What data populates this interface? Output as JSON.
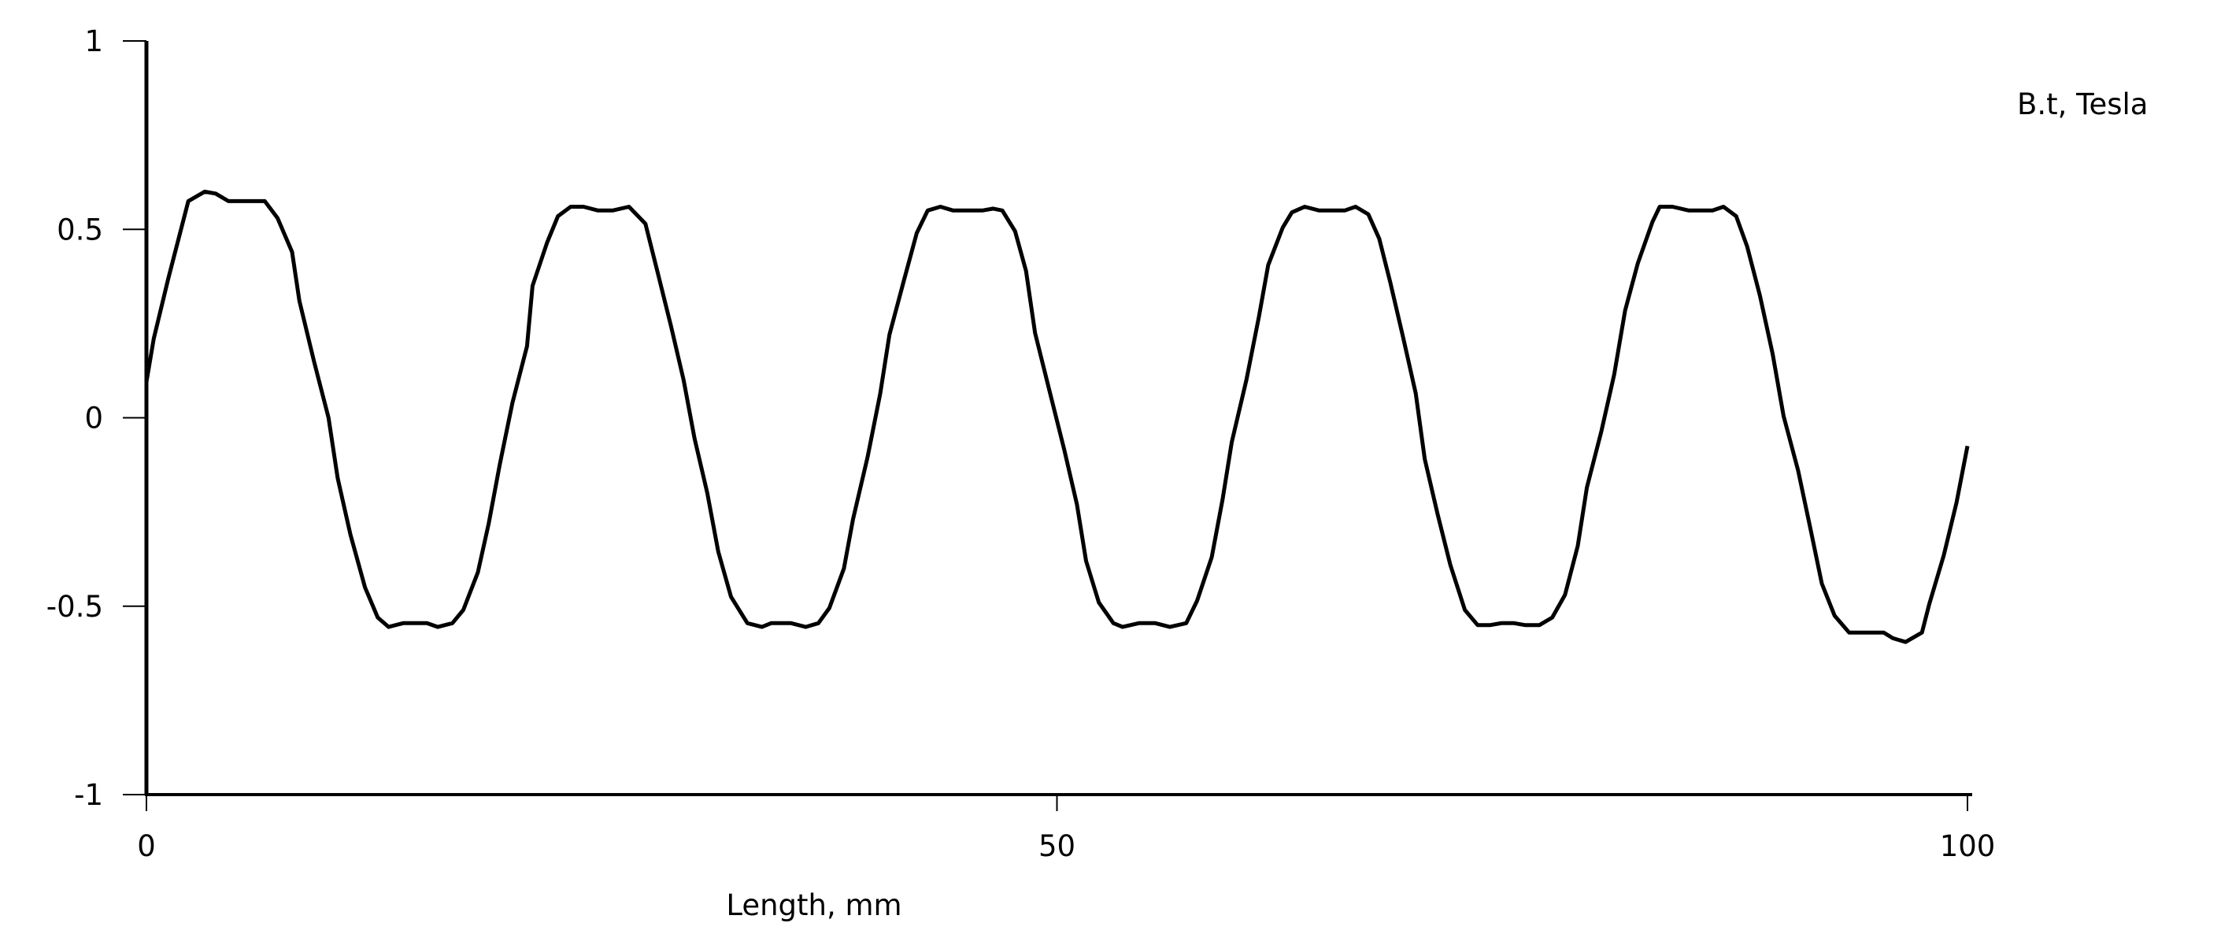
{
  "chart_data": {
    "type": "line",
    "title": "",
    "xlabel": "Length, mm",
    "ylabel": "B.t, Tesla",
    "xlim": [
      0,
      100
    ],
    "ylim": [
      -1,
      1
    ],
    "xticks": [
      0,
      50,
      100
    ],
    "xtick_labels": [
      "0",
      "50",
      "100"
    ],
    "yticks": [
      1,
      0.5,
      0,
      -0.5,
      -1
    ],
    "ytick_labels": [
      "1",
      "0.5",
      "0",
      "-0.5",
      "-1"
    ],
    "grid": false,
    "line_color": "#000000",
    "series": [
      {
        "x": [
          0,
          0.4,
          1.2,
          2.3,
          3.2,
          3.8,
          4.5,
          6.5,
          7.2,
          8.0,
          8.4,
          9.2,
          10.0,
          10.5,
          11.2,
          12.0,
          12.7,
          13.3,
          14.1,
          15.4,
          16.0,
          16.8,
          17.4,
          18.2,
          18.8,
          19.4,
          20.1,
          20.9,
          21.2,
          22.0,
          22.6,
          23.3,
          24.0,
          24.8,
          25.6,
          26.5,
          27.4,
          28.1,
          28.8,
          29.5,
          30.1,
          30.8,
          31.4,
          32.1,
          33.0,
          33.8,
          34.3,
          35.4,
          36.2,
          36.9,
          37.5,
          38.3,
          38.8,
          39.6,
          40.3,
          40.8,
          41.6,
          42.3,
          42.9,
          43.6,
          44.3,
          45.9,
          46.5,
          47.0,
          47.7,
          48.3,
          48.8,
          49.6,
          50.4,
          51.1,
          51.6,
          52.3,
          53.1,
          53.6,
          54.5,
          55.4,
          56.2,
          57.1,
          57.7,
          58.5,
          59.1,
          59.6,
          60.4,
          61.1,
          61.6,
          62.4,
          62.9,
          63.6,
          64.4,
          65.8,
          66.4,
          67.1,
          67.7,
          68.3,
          69.0,
          69.7,
          70.2,
          70.9,
          71.6,
          72.4,
          73.1,
          73.8,
          74.4,
          75.1,
          75.7,
          76.5,
          77.2,
          77.9,
          78.6,
          79.1,
          79.9,
          80.6,
          81.2,
          81.9,
          82.7,
          83.1,
          83.8,
          84.7,
          86.0,
          86.6,
          87.3,
          87.9,
          88.6,
          89.3,
          89.9,
          90.7,
          91.4,
          92.0,
          92.7,
          93.5,
          95.4,
          95.9,
          96.6,
          97.5,
          97.9,
          98.7,
          99.4,
          100.0
        ],
        "y": [
          0.095,
          0.21,
          0.37,
          0.575,
          0.6,
          0.595,
          0.575,
          0.575,
          0.53,
          0.44,
          0.31,
          0.15,
          0.0,
          -0.16,
          -0.31,
          -0.45,
          -0.53,
          -0.555,
          -0.545,
          -0.545,
          -0.555,
          -0.545,
          -0.51,
          -0.41,
          -0.28,
          -0.125,
          0.04,
          0.19,
          0.35,
          0.465,
          0.535,
          0.56,
          0.56,
          0.55,
          0.55,
          0.56,
          0.515,
          0.38,
          0.245,
          0.1,
          -0.055,
          -0.2,
          -0.355,
          -0.475,
          -0.545,
          -0.555,
          -0.545,
          -0.545,
          -0.555,
          -0.545,
          -0.505,
          -0.4,
          -0.27,
          -0.105,
          0.065,
          0.22,
          0.365,
          0.49,
          0.55,
          0.56,
          0.55,
          0.55,
          0.555,
          0.55,
          0.495,
          0.39,
          0.225,
          0.07,
          -0.085,
          -0.23,
          -0.38,
          -0.49,
          -0.545,
          -0.555,
          -0.545,
          -0.545,
          -0.555,
          -0.545,
          -0.485,
          -0.37,
          -0.215,
          -0.065,
          0.1,
          0.27,
          0.405,
          0.505,
          0.545,
          0.56,
          0.55,
          0.55,
          0.56,
          0.54,
          0.475,
          0.36,
          0.215,
          0.065,
          -0.11,
          -0.255,
          -0.39,
          -0.51,
          -0.55,
          -0.55,
          -0.545,
          -0.545,
          -0.55,
          -0.55,
          -0.53,
          -0.47,
          -0.34,
          -0.185,
          -0.035,
          0.115,
          0.285,
          0.41,
          0.52,
          0.56,
          0.56,
          0.55,
          0.55,
          0.56,
          0.535,
          0.455,
          0.325,
          0.17,
          0.005,
          -0.14,
          -0.3,
          -0.44,
          -0.525,
          -0.57,
          -0.57,
          -0.585,
          -0.595,
          -0.57,
          -0.495,
          -0.365,
          -0.225,
          -0.075
        ]
      }
    ]
  }
}
